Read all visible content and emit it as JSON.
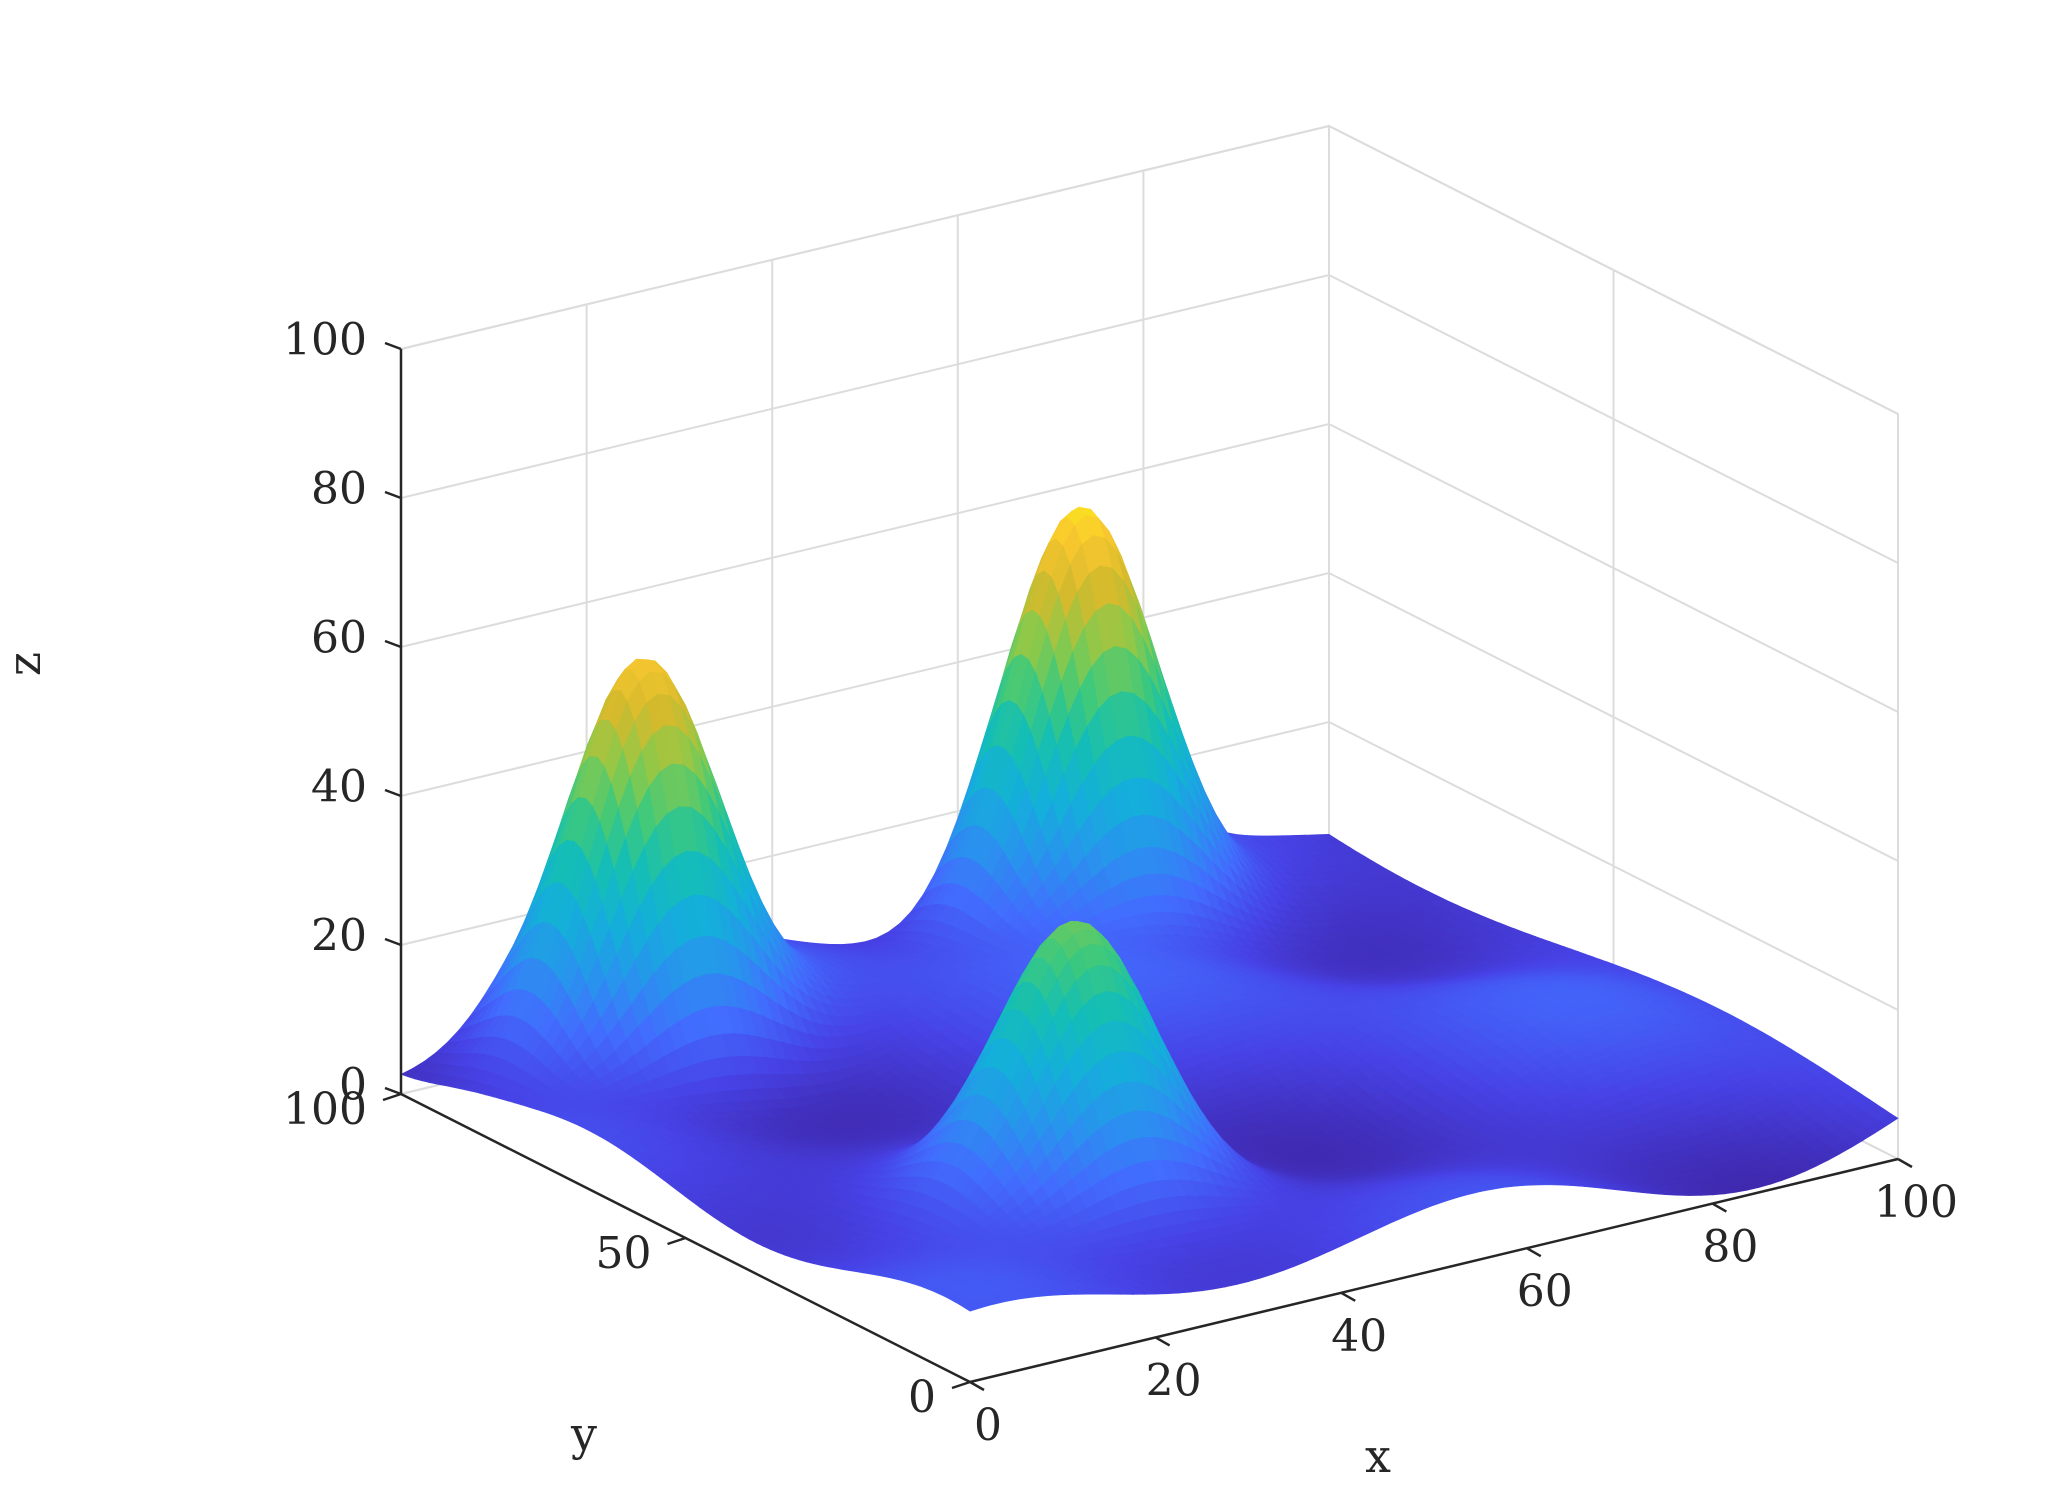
{
  "chart_data": {
    "type": "surface",
    "title": "",
    "xlabel": "x",
    "ylabel": "y",
    "zlabel": "z",
    "xlim": [
      0,
      100
    ],
    "ylim": [
      0,
      100
    ],
    "zlim": [
      0,
      100
    ],
    "x_ticks": [
      0,
      20,
      40,
      60,
      80,
      100
    ],
    "y_ticks": [
      0,
      50,
      100
    ],
    "z_ticks": [
      0,
      20,
      40,
      60,
      80,
      100
    ],
    "grid": true,
    "colormap": "parula",
    "peaks": [
      {
        "x": 20,
        "y": 90,
        "z": 55
      },
      {
        "x": 70,
        "y": 95,
        "z": 61
      },
      {
        "x": 30,
        "y": 30,
        "z": 39
      }
    ],
    "background_level": 6
  },
  "colors": {
    "axis": "#262626",
    "grid": "#dcdcdc",
    "low": "#3e26a8",
    "high": "#f9fb0e"
  }
}
